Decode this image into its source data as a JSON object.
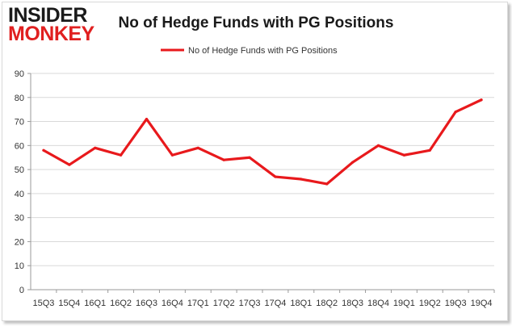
{
  "logo": {
    "line1": "INSIDER",
    "line2": "MONKEY",
    "color_dark": "#1a1a1a",
    "color_accent": "#e02020"
  },
  "chart_data": {
    "type": "line",
    "title": "No of Hedge Funds with PG Positions",
    "xlabel": "",
    "ylabel": "",
    "categories": [
      "15Q3",
      "15Q4",
      "16Q1",
      "16Q2",
      "16Q3",
      "16Q4",
      "17Q1",
      "17Q2",
      "17Q3",
      "17Q4",
      "18Q1",
      "18Q2",
      "18Q3",
      "18Q4",
      "19Q1",
      "19Q2",
      "19Q3",
      "19Q4"
    ],
    "series": [
      {
        "name": "No of Hedge Funds with PG Positions",
        "color": "#e8191c",
        "values": [
          58,
          52,
          59,
          56,
          71,
          56,
          59,
          54,
          55,
          47,
          46,
          44,
          53,
          60,
          56,
          58,
          74,
          79
        ]
      }
    ],
    "ylim": [
      0,
      90
    ],
    "yticks": [
      0,
      10,
      20,
      30,
      40,
      50,
      60,
      70,
      80,
      90
    ],
    "grid": true,
    "legend_position": "top-center"
  }
}
